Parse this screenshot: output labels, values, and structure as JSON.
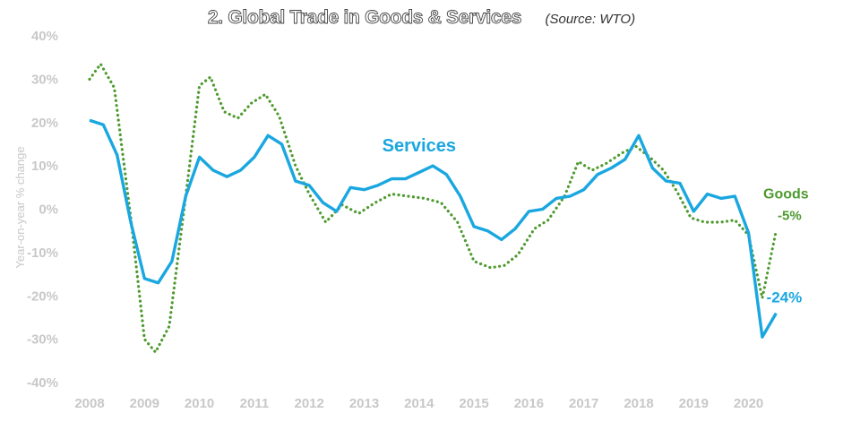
{
  "chart_data": {
    "type": "line",
    "title": "2. Global Trade in Goods & Services",
    "subtitle": "(Source: WTO)",
    "xlabel": "",
    "ylabel": "Year-on-year % change",
    "ylim": [
      -40,
      40
    ],
    "xlim": [
      2008,
      2020.75
    ],
    "y_ticks": [
      "40%",
      "30%",
      "20%",
      "10%",
      "0%",
      "-10%",
      "-20%",
      "-30%",
      "-40%"
    ],
    "y_tick_values": [
      40,
      30,
      20,
      10,
      0,
      -10,
      -20,
      -30,
      -40
    ],
    "x_ticks": [
      "2008",
      "2009",
      "2010",
      "2011",
      "2012",
      "2013",
      "2014",
      "2015",
      "2016",
      "2017",
      "2018",
      "2019",
      "2020"
    ],
    "x_tick_values": [
      2008,
      2009,
      2010,
      2011,
      2012,
      2013,
      2014,
      2015,
      2016,
      2017,
      2018,
      2019,
      2020
    ],
    "grid": false,
    "series": [
      {
        "name": "Services",
        "style": "solid",
        "color": "#1aa7e0",
        "end_label": "-24%",
        "points": [
          [
            2008.0,
            20.5
          ],
          [
            2008.25,
            19.5
          ],
          [
            2008.5,
            12.5
          ],
          [
            2008.75,
            -3.0
          ],
          [
            2009.0,
            -16.0
          ],
          [
            2009.25,
            -17.0
          ],
          [
            2009.5,
            -12.0
          ],
          [
            2009.75,
            3.0
          ],
          [
            2010.0,
            12.0
          ],
          [
            2010.25,
            9.0
          ],
          [
            2010.5,
            7.5
          ],
          [
            2010.75,
            9.0
          ],
          [
            2011.0,
            12.0
          ],
          [
            2011.25,
            17.0
          ],
          [
            2011.5,
            15.0
          ],
          [
            2011.75,
            6.5
          ],
          [
            2012.0,
            5.5
          ],
          [
            2012.25,
            1.5
          ],
          [
            2012.5,
            -0.5
          ],
          [
            2012.75,
            5.0
          ],
          [
            2013.0,
            4.5
          ],
          [
            2013.25,
            5.5
          ],
          [
            2013.5,
            7.0
          ],
          [
            2013.75,
            7.0
          ],
          [
            2014.0,
            8.5
          ],
          [
            2014.25,
            10.0
          ],
          [
            2014.5,
            8.0
          ],
          [
            2014.75,
            3.0
          ],
          [
            2015.0,
            -4.0
          ],
          [
            2015.25,
            -5.0
          ],
          [
            2015.5,
            -7.0
          ],
          [
            2015.75,
            -4.5
          ],
          [
            2016.0,
            -0.5
          ],
          [
            2016.25,
            0.0
          ],
          [
            2016.5,
            2.5
          ],
          [
            2016.75,
            3.0
          ],
          [
            2017.0,
            4.5
          ],
          [
            2017.25,
            8.0
          ],
          [
            2017.5,
            9.5
          ],
          [
            2017.75,
            11.5
          ],
          [
            2018.0,
            17.0
          ],
          [
            2018.25,
            9.5
          ],
          [
            2018.5,
            6.5
          ],
          [
            2018.75,
            6.0
          ],
          [
            2019.0,
            -0.5
          ],
          [
            2019.25,
            3.5
          ],
          [
            2019.5,
            2.5
          ],
          [
            2019.75,
            3.0
          ],
          [
            2020.0,
            -5.5
          ],
          [
            2020.25,
            -29.5
          ],
          [
            2020.5,
            -24.0
          ]
        ]
      },
      {
        "name": "Goods",
        "style": "dotted",
        "color": "#4e9a2f",
        "end_label": "-5%",
        "points": [
          [
            2008.0,
            30.0
          ],
          [
            2008.2,
            33.5
          ],
          [
            2008.45,
            28.0
          ],
          [
            2008.75,
            -2.0
          ],
          [
            2009.0,
            -30.0
          ],
          [
            2009.2,
            -33.0
          ],
          [
            2009.45,
            -27.0
          ],
          [
            2009.75,
            3.0
          ],
          [
            2010.0,
            28.5
          ],
          [
            2010.2,
            30.5
          ],
          [
            2010.45,
            22.5
          ],
          [
            2010.7,
            21.0
          ],
          [
            2010.95,
            24.5
          ],
          [
            2011.2,
            26.5
          ],
          [
            2011.45,
            21.5
          ],
          [
            2011.75,
            10.0
          ],
          [
            2012.0,
            3.5
          ],
          [
            2012.3,
            -3.0
          ],
          [
            2012.6,
            1.0
          ],
          [
            2012.9,
            -1.0
          ],
          [
            2013.2,
            1.5
          ],
          [
            2013.5,
            3.5
          ],
          [
            2013.8,
            3.0
          ],
          [
            2014.1,
            2.5
          ],
          [
            2014.4,
            1.5
          ],
          [
            2014.7,
            -3.0
          ],
          [
            2015.0,
            -12.0
          ],
          [
            2015.3,
            -13.5
          ],
          [
            2015.55,
            -13.0
          ],
          [
            2015.8,
            -10.5
          ],
          [
            2016.1,
            -4.5
          ],
          [
            2016.35,
            -2.5
          ],
          [
            2016.65,
            3.0
          ],
          [
            2016.9,
            11.0
          ],
          [
            2017.15,
            9.0
          ],
          [
            2017.4,
            10.5
          ],
          [
            2017.7,
            13.0
          ],
          [
            2017.95,
            14.5
          ],
          [
            2018.2,
            12.0
          ],
          [
            2018.45,
            9.0
          ],
          [
            2018.7,
            4.0
          ],
          [
            2018.95,
            -2.0
          ],
          [
            2019.2,
            -3.0
          ],
          [
            2019.5,
            -3.0
          ],
          [
            2019.75,
            -2.5
          ],
          [
            2020.0,
            -6.0
          ],
          [
            2020.25,
            -20.5
          ],
          [
            2020.5,
            -5.0
          ]
        ]
      }
    ],
    "annotations": [
      {
        "text": "Services",
        "series": "Services",
        "color": "#1aa7e0",
        "x": 2014.0,
        "y": 13.3
      },
      {
        "text": "Goods",
        "series": "Goods",
        "color": "#4e9a2f",
        "x": 2020.6,
        "y": 2.5
      }
    ]
  }
}
